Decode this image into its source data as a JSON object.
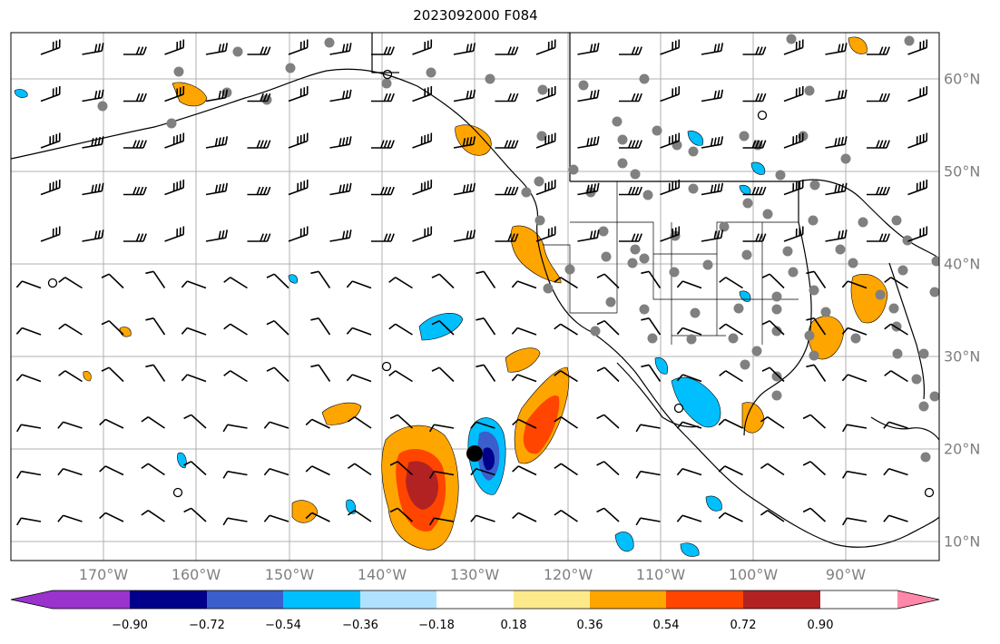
{
  "title": "2023092000 F084",
  "lon_labels": [
    "170°W",
    "160°W",
    "150°W",
    "140°W",
    "130°W",
    "120°W",
    "110°W",
    "100°W",
    "90°W"
  ],
  "lat_labels": [
    "60°N",
    "50°N",
    "40°N",
    "30°N",
    "20°N",
    "10°N"
  ],
  "colorbar": {
    "ticks": [
      "−0.90",
      "−0.72",
      "−0.54",
      "−0.36",
      "−0.18",
      "0.18",
      "0.36",
      "0.54",
      "0.72",
      "0.90"
    ],
    "colors": [
      "#9a32cd",
      "#00008b",
      "#3a5fcd",
      "#00bfff",
      "#b0e2ff",
      "#ffffff",
      "#fce98a",
      "#ffa500",
      "#ff4500",
      "#b22222",
      "#ff88aa"
    ]
  },
  "marker_colors": {
    "station": "#808080",
    "storm": "#000000"
  }
}
